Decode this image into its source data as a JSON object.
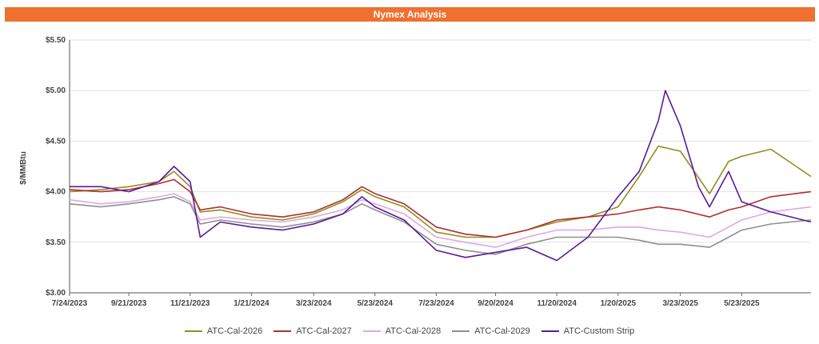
{
  "header": {
    "title": "Nymex Analysis"
  },
  "chart_data": {
    "type": "line",
    "title": "Nymex Analysis",
    "xlabel": "",
    "ylabel": "$/MMBtu",
    "ylim": [
      3.0,
      5.5
    ],
    "xlim": [
      "2023-07-24",
      "2025-07-31"
    ],
    "y_ticks": [
      "$3.00",
      "$3.50",
      "$4.00",
      "$4.50",
      "$5.00",
      "$5.50"
    ],
    "y_tick_values": [
      3.0,
      3.5,
      4.0,
      4.5,
      5.0,
      5.5
    ],
    "x_ticks": [
      "7/24/2023",
      "9/21/2023",
      "11/21/2023",
      "1/21/2024",
      "3/23/2024",
      "5/23/2024",
      "7/23/2024",
      "9/20/2024",
      "11/20/2024",
      "1/20/2025",
      "3/23/2025",
      "5/23/2025"
    ],
    "x_tick_dates": [
      "2023-07-24",
      "2023-09-21",
      "2023-11-21",
      "2024-01-21",
      "2024-03-23",
      "2024-05-23",
      "2024-07-23",
      "2024-09-20",
      "2024-11-20",
      "2025-01-20",
      "2025-03-23",
      "2025-05-23"
    ],
    "grid": true,
    "legend_position": "bottom",
    "series": [
      {
        "name": "ATC-Cal-2026",
        "color": "#8f8f1f",
        "x": [
          "2023-07-24",
          "2023-08-24",
          "2023-09-21",
          "2023-10-21",
          "2023-11-05",
          "2023-11-21",
          "2023-12-01",
          "2023-12-21",
          "2024-01-21",
          "2024-02-21",
          "2024-03-23",
          "2024-04-21",
          "2024-05-10",
          "2024-05-23",
          "2024-06-21",
          "2024-07-23",
          "2024-08-21",
          "2024-09-20",
          "2024-10-21",
          "2024-11-20",
          "2024-12-21",
          "2025-01-20",
          "2025-02-10",
          "2025-03-01",
          "2025-03-23",
          "2025-04-21",
          "2025-05-10",
          "2025-05-23",
          "2025-06-21",
          "2025-07-31"
        ],
        "values": [
          4.0,
          4.02,
          4.05,
          4.1,
          4.2,
          4.05,
          3.8,
          3.82,
          3.75,
          3.72,
          3.78,
          3.9,
          4.02,
          3.95,
          3.85,
          3.6,
          3.55,
          3.55,
          3.62,
          3.7,
          3.75,
          3.85,
          4.15,
          4.45,
          4.4,
          3.98,
          4.3,
          4.35,
          4.42,
          4.15
        ]
      },
      {
        "name": "ATC-Cal-2027",
        "color": "#b03030",
        "x": [
          "2023-07-24",
          "2023-08-24",
          "2023-09-21",
          "2023-10-21",
          "2023-11-05",
          "2023-11-21",
          "2023-12-01",
          "2023-12-21",
          "2024-01-21",
          "2024-02-21",
          "2024-03-23",
          "2024-04-21",
          "2024-05-10",
          "2024-05-23",
          "2024-06-21",
          "2024-07-23",
          "2024-08-21",
          "2024-09-20",
          "2024-10-21",
          "2024-11-20",
          "2024-12-21",
          "2025-01-20",
          "2025-02-10",
          "2025-03-01",
          "2025-03-23",
          "2025-04-21",
          "2025-05-10",
          "2025-05-23",
          "2025-06-21",
          "2025-07-31"
        ],
        "values": [
          4.02,
          4.0,
          4.02,
          4.08,
          4.12,
          4.0,
          3.82,
          3.85,
          3.78,
          3.75,
          3.8,
          3.92,
          4.05,
          3.98,
          3.88,
          3.65,
          3.58,
          3.55,
          3.62,
          3.72,
          3.75,
          3.78,
          3.82,
          3.85,
          3.82,
          3.75,
          3.82,
          3.85,
          3.95,
          4.0
        ]
      },
      {
        "name": "ATC-Cal-2028",
        "color": "#e0a8e0",
        "x": [
          "2023-07-24",
          "2023-08-24",
          "2023-09-21",
          "2023-10-21",
          "2023-11-05",
          "2023-11-21",
          "2023-12-01",
          "2023-12-21",
          "2024-01-21",
          "2024-02-21",
          "2024-03-23",
          "2024-04-21",
          "2024-05-10",
          "2024-05-23",
          "2024-06-21",
          "2024-07-23",
          "2024-08-21",
          "2024-09-20",
          "2024-10-21",
          "2024-11-20",
          "2024-12-21",
          "2025-01-20",
          "2025-02-10",
          "2025-03-01",
          "2025-03-23",
          "2025-04-21",
          "2025-05-10",
          "2025-05-23",
          "2025-06-21",
          "2025-07-31"
        ],
        "values": [
          3.92,
          3.88,
          3.9,
          3.95,
          3.98,
          3.9,
          3.72,
          3.75,
          3.72,
          3.7,
          3.75,
          3.82,
          3.92,
          3.88,
          3.78,
          3.55,
          3.5,
          3.45,
          3.55,
          3.62,
          3.62,
          3.65,
          3.65,
          3.62,
          3.6,
          3.55,
          3.65,
          3.72,
          3.8,
          3.85
        ]
      },
      {
        "name": "ATC-Cal-2029",
        "color": "#8f8f8f",
        "x": [
          "2023-07-24",
          "2023-08-24",
          "2023-09-21",
          "2023-10-21",
          "2023-11-05",
          "2023-11-21",
          "2023-12-01",
          "2023-12-21",
          "2024-01-21",
          "2024-02-21",
          "2024-03-23",
          "2024-04-21",
          "2024-05-10",
          "2024-05-23",
          "2024-06-21",
          "2024-07-23",
          "2024-08-21",
          "2024-09-20",
          "2024-10-21",
          "2024-11-20",
          "2024-12-21",
          "2025-01-20",
          "2025-02-10",
          "2025-03-01",
          "2025-03-23",
          "2025-04-21",
          "2025-05-10",
          "2025-05-23",
          "2025-06-21",
          "2025-07-31"
        ],
        "values": [
          3.88,
          3.85,
          3.88,
          3.92,
          3.95,
          3.88,
          3.68,
          3.72,
          3.68,
          3.65,
          3.7,
          3.78,
          3.88,
          3.82,
          3.7,
          3.48,
          3.42,
          3.38,
          3.48,
          3.55,
          3.55,
          3.55,
          3.52,
          3.48,
          3.48,
          3.45,
          3.55,
          3.62,
          3.68,
          3.72
        ]
      },
      {
        "name": "ATC-Custom Strip",
        "color": "#5a1a9a",
        "x": [
          "2023-07-24",
          "2023-08-24",
          "2023-09-21",
          "2023-10-21",
          "2023-11-05",
          "2023-11-21",
          "2023-12-01",
          "2023-12-21",
          "2024-01-21",
          "2024-02-21",
          "2024-03-23",
          "2024-04-21",
          "2024-05-10",
          "2024-05-23",
          "2024-06-21",
          "2024-07-23",
          "2024-08-21",
          "2024-09-20",
          "2024-10-21",
          "2024-11-20",
          "2024-12-21",
          "2025-01-20",
          "2025-02-10",
          "2025-03-01",
          "2025-03-08",
          "2025-03-23",
          "2025-04-10",
          "2025-04-21",
          "2025-05-10",
          "2025-05-23",
          "2025-06-21",
          "2025-07-31"
        ],
        "values": [
          4.05,
          4.05,
          4.0,
          4.1,
          4.25,
          4.1,
          3.55,
          3.7,
          3.65,
          3.62,
          3.68,
          3.78,
          3.95,
          3.85,
          3.72,
          3.42,
          3.35,
          3.4,
          3.45,
          3.32,
          3.55,
          3.95,
          4.2,
          4.7,
          5.0,
          4.65,
          4.05,
          3.85,
          4.2,
          3.9,
          3.8,
          3.7
        ]
      }
    ]
  }
}
